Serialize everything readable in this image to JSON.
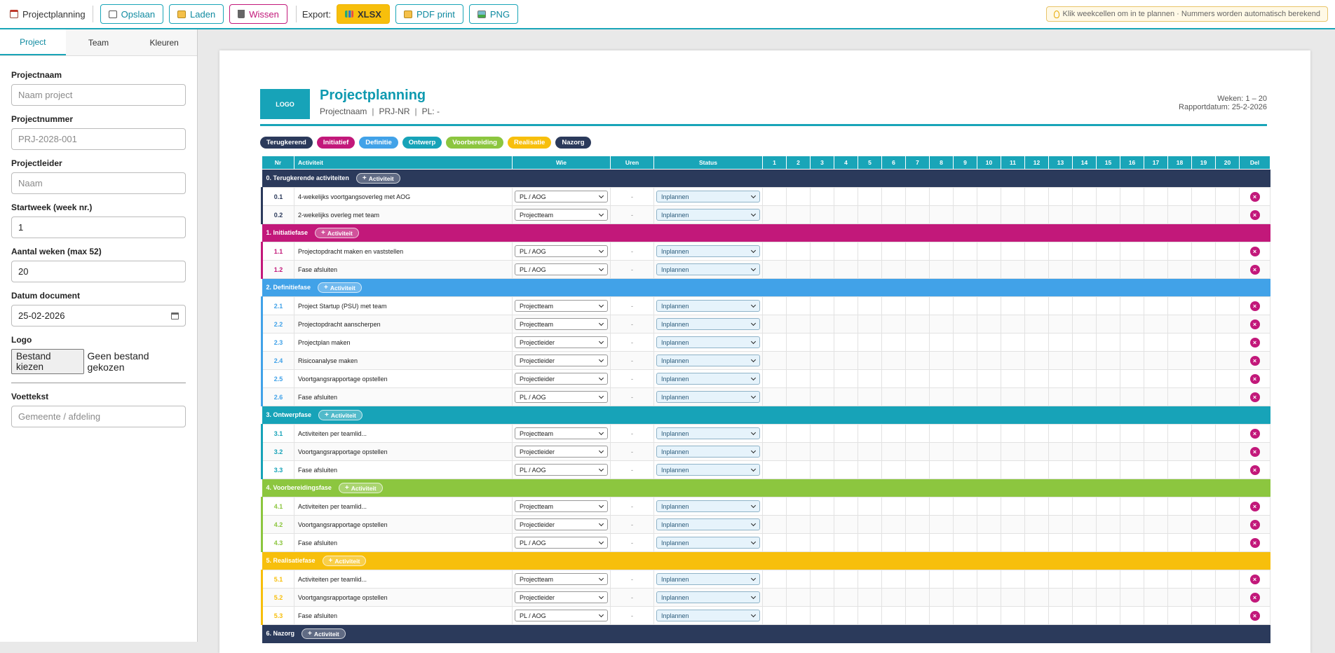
{
  "toolbar": {
    "app_title": "Projectplanning",
    "save": "Opslaan",
    "load": "Laden",
    "clear": "Wissen",
    "export_label": "Export:",
    "xlsx": "XLSX",
    "pdf": "PDF print",
    "png": "PNG",
    "hint": "Klik weekcellen om in te plannen · Nummers worden automatisch berekend"
  },
  "sidebar": {
    "tabs": [
      "Project",
      "Team",
      "Kleuren"
    ],
    "fields": {
      "projectnaam": {
        "label": "Projectnaam",
        "placeholder": "Naam project"
      },
      "projectnummer": {
        "label": "Projectnummer",
        "placeholder": "PRJ-2028-001"
      },
      "projectleider": {
        "label": "Projectleider",
        "placeholder": "Naam"
      },
      "startweek": {
        "label": "Startweek (week nr.)",
        "value": "1"
      },
      "aantal": {
        "label": "Aantal weken (max 52)",
        "value": "20"
      },
      "datum": {
        "label": "Datum document",
        "value": "25-02-2026"
      },
      "logo": {
        "label": "Logo",
        "button": "Bestand kiezen",
        "status": "Geen bestand gekozen"
      },
      "voettekst": {
        "label": "Voettekst",
        "placeholder": "Gemeente / afdeling"
      }
    }
  },
  "doc": {
    "logo": "LOGO",
    "title": "Projectplanning",
    "sub_name": "Projectnaam",
    "sub_nr": "PRJ-NR",
    "sub_pl": "PL: -",
    "weeks": "Weken: 1 – 20",
    "report_date": "Rapportdatum: 25-2-2026"
  },
  "legend": [
    {
      "label": "Terugkerend",
      "color": "#2b3a5b"
    },
    {
      "label": "Initiatief",
      "color": "#c2187a"
    },
    {
      "label": "Definitie",
      "color": "#41a2e8"
    },
    {
      "label": "Ontwerp",
      "color": "#17a3b8"
    },
    {
      "label": "Voorbereiding",
      "color": "#8cc63f"
    },
    {
      "label": "Realisatie",
      "color": "#f7bf0c"
    },
    {
      "label": "Nazorg",
      "color": "#2b3a5b"
    }
  ],
  "table": {
    "headers": {
      "nr": "Nr",
      "act": "Activiteit",
      "wie": "Wie",
      "uren": "Uren",
      "status": "Status",
      "del": "Del"
    },
    "weeks": [
      "1",
      "2",
      "3",
      "4",
      "5",
      "6",
      "7",
      "8",
      "9",
      "10",
      "11",
      "12",
      "13",
      "14",
      "15",
      "16",
      "17",
      "18",
      "19",
      "20"
    ],
    "add_label": "Activiteit",
    "uren_placeholder": "-",
    "phases": [
      {
        "title": "0. Terugkerende activiteiten",
        "color": "#2b3a5b",
        "rows": [
          {
            "nr": "0.1",
            "act": "4-wekelijks voortgangsoverleg met AOG",
            "wie": "PL / AOG",
            "status": "Inplannen"
          },
          {
            "nr": "0.2",
            "act": "2-wekelijks overleg met team",
            "wie": "Projectteam",
            "status": "Inplannen"
          }
        ]
      },
      {
        "title": "1. Initiatiefase",
        "color": "#c2187a",
        "rows": [
          {
            "nr": "1.1",
            "act": "Projectopdracht maken en vaststellen",
            "wie": "PL / AOG",
            "status": "Inplannen"
          },
          {
            "nr": "1.2",
            "act": "Fase afsluiten",
            "wie": "PL / AOG",
            "status": "Inplannen"
          }
        ]
      },
      {
        "title": "2. Definitiefase",
        "color": "#41a2e8",
        "rows": [
          {
            "nr": "2.1",
            "act": "Project Startup (PSU) met team",
            "wie": "Projectteam",
            "status": "Inplannen"
          },
          {
            "nr": "2.2",
            "act": "Projectopdracht aanscherpen",
            "wie": "Projectteam",
            "status": "Inplannen"
          },
          {
            "nr": "2.3",
            "act": "Projectplan maken",
            "wie": "Projectleider",
            "status": "Inplannen"
          },
          {
            "nr": "2.4",
            "act": "Risicoanalyse maken",
            "wie": "Projectleider",
            "status": "Inplannen"
          },
          {
            "nr": "2.5",
            "act": "Voortgangsrapportage opstellen",
            "wie": "Projectleider",
            "status": "Inplannen"
          },
          {
            "nr": "2.6",
            "act": "Fase afsluiten",
            "wie": "PL / AOG",
            "status": "Inplannen"
          }
        ]
      },
      {
        "title": "3. Ontwerpfase",
        "color": "#17a3b8",
        "rows": [
          {
            "nr": "3.1",
            "act": "Activiteiten per teamlid...",
            "wie": "Projectteam",
            "status": "Inplannen"
          },
          {
            "nr": "3.2",
            "act": "Voortgangsrapportage opstellen",
            "wie": "Projectleider",
            "status": "Inplannen"
          },
          {
            "nr": "3.3",
            "act": "Fase afsluiten",
            "wie": "PL / AOG",
            "status": "Inplannen"
          }
        ]
      },
      {
        "title": "4. Voorbereidingsfase",
        "color": "#8cc63f",
        "rows": [
          {
            "nr": "4.1",
            "act": "Activiteiten per teamlid...",
            "wie": "Projectteam",
            "status": "Inplannen"
          },
          {
            "nr": "4.2",
            "act": "Voortgangsrapportage opstellen",
            "wie": "Projectleider",
            "status": "Inplannen"
          },
          {
            "nr": "4.3",
            "act": "Fase afsluiten",
            "wie": "PL / AOG",
            "status": "Inplannen"
          }
        ]
      },
      {
        "title": "5. Realisatiefase",
        "color": "#f7bf0c",
        "rows": [
          {
            "nr": "5.1",
            "act": "Activiteiten per teamlid...",
            "wie": "Projectteam",
            "status": "Inplannen"
          },
          {
            "nr": "5.2",
            "act": "Voortgangsrapportage opstellen",
            "wie": "Projectleider",
            "status": "Inplannen"
          },
          {
            "nr": "5.3",
            "act": "Fase afsluiten",
            "wie": "PL / AOG",
            "status": "Inplannen"
          }
        ]
      },
      {
        "title": "6. Nazorg",
        "color": "#2b3a5b",
        "rows": []
      }
    ]
  }
}
